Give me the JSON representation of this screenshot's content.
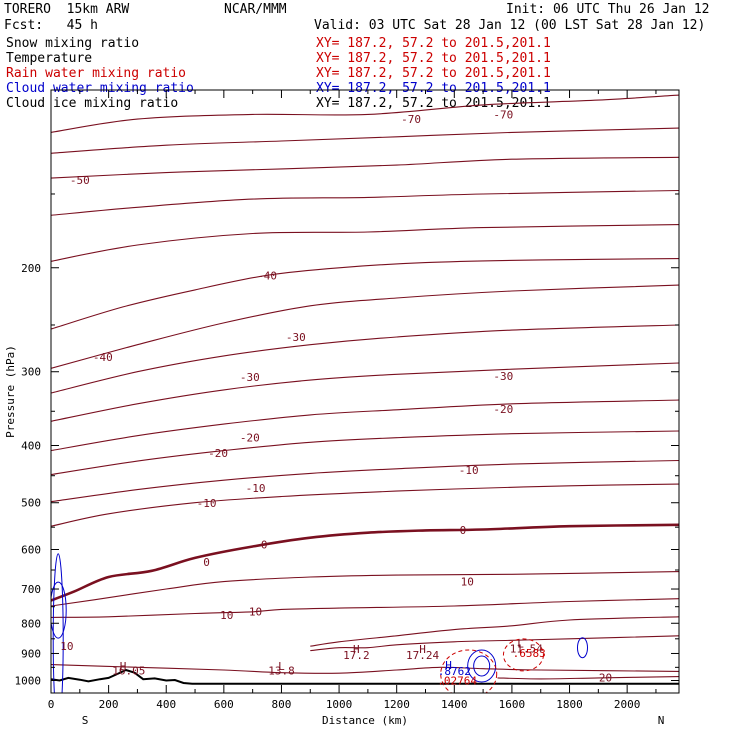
{
  "header": {
    "model": "TORERO  15km ARW",
    "org": "NCAR/MMM",
    "init": "Init: 06 UTC Thu 26 Jan 12",
    "fcst": "Fcst:   45 h",
    "valid": "Valid: 03 UTC Sat 28 Jan 12 (00 LST Sat 28 Jan 12)"
  },
  "fields": [
    {
      "name": "Snow mixing ratio",
      "xy": "XY= 187.2, 57.2 to 201.5,201.1",
      "color": "#000000"
    },
    {
      "name": "Temperature",
      "xy": "XY= 187.2, 57.2 to 201.5,201.1",
      "color": "#cc0000"
    },
    {
      "name": "Rain water mixing ratio",
      "xy": "XY= 187.2, 57.2 to 201.5,201.1",
      "color": "#cc0000"
    },
    {
      "name": "Cloud water mixing ratio",
      "xy": "XY= 187.2, 57.2 to 201.5,201.1",
      "color": "#0000cc"
    },
    {
      "name": "Cloud ice mixing ratio",
      "xy": "XY= 187.2, 57.2 to 201.5,201.1",
      "color": "#000000"
    }
  ],
  "chart_data": {
    "type": "contour",
    "xlabel": "Distance (km)",
    "ylabel": "Pressure (hPa)",
    "xlim": [
      0,
      2180
    ],
    "ylim": [
      1050,
      100
    ],
    "x_ticks": [
      0,
      200,
      400,
      600,
      800,
      1000,
      1200,
      1400,
      1600,
      1800,
      2000
    ],
    "y_ticks": [
      200,
      300,
      400,
      500,
      600,
      700,
      800,
      900,
      1000
    ],
    "x_end_labels": [
      "S",
      "N"
    ],
    "temperature_isotherms": [
      {
        "label": "-70",
        "points": [
          [
            0,
            118
          ],
          [
            300,
            112
          ],
          [
            700,
            110
          ],
          [
            1100,
            110
          ],
          [
            1500,
            106
          ],
          [
            1900,
            104
          ],
          [
            2180,
            102
          ]
        ]
      },
      {
        "label": "",
        "points": [
          [
            0,
            128
          ],
          [
            400,
            124
          ],
          [
            800,
            122
          ],
          [
            1200,
            120
          ],
          [
            1600,
            118
          ],
          [
            2180,
            116
          ]
        ]
      },
      {
        "label": "-50",
        "points": [
          [
            0,
            141
          ],
          [
            400,
            138
          ],
          [
            800,
            136
          ],
          [
            1200,
            134
          ],
          [
            1600,
            131
          ],
          [
            2180,
            130
          ]
        ]
      },
      {
        "label": "",
        "points": [
          [
            0,
            163
          ],
          [
            300,
            158
          ],
          [
            700,
            153
          ],
          [
            1100,
            152
          ],
          [
            1500,
            150
          ],
          [
            2180,
            148
          ]
        ]
      },
      {
        "label": "",
        "points": [
          [
            0,
            195
          ],
          [
            300,
            183
          ],
          [
            700,
            175
          ],
          [
            1100,
            174
          ],
          [
            1500,
            171
          ],
          [
            2180,
            169
          ]
        ]
      },
      {
        "label": "-40",
        "points": [
          [
            0,
            254
          ],
          [
            250,
            233
          ],
          [
            500,
            218
          ],
          [
            750,
            206
          ],
          [
            1000,
            200
          ],
          [
            1300,
            196
          ],
          [
            1700,
            194
          ],
          [
            2180,
            193
          ]
        ]
      },
      {
        "label": "-40",
        "points": [
          [
            0,
            296
          ],
          [
            300,
            270
          ],
          [
            600,
            248
          ],
          [
            900,
            232
          ],
          [
            1200,
            225
          ],
          [
            1600,
            219
          ],
          [
            2180,
            214
          ]
        ]
      },
      {
        "label": "-30",
        "points": [
          [
            0,
            326
          ],
          [
            300,
            300
          ],
          [
            600,
            282
          ],
          [
            900,
            270
          ],
          [
            1200,
            262
          ],
          [
            1600,
            255
          ],
          [
            2180,
            250
          ]
        ]
      },
      {
        "label": "-30",
        "points": [
          [
            0,
            364
          ],
          [
            300,
            340
          ],
          [
            600,
            322
          ],
          [
            900,
            310
          ],
          [
            1200,
            303
          ],
          [
            1600,
            297
          ],
          [
            2180,
            290
          ]
        ]
      },
      {
        "label": "-20",
        "points": [
          [
            0,
            408
          ],
          [
            300,
            385
          ],
          [
            600,
            368
          ],
          [
            900,
            355
          ],
          [
            1200,
            348
          ],
          [
            1600,
            340
          ],
          [
            2180,
            335
          ]
        ]
      },
      {
        "label": "-20",
        "points": [
          [
            0,
            448
          ],
          [
            300,
            425
          ],
          [
            600,
            408
          ],
          [
            900,
            395
          ],
          [
            1200,
            388
          ],
          [
            1600,
            382
          ],
          [
            2180,
            378
          ]
        ]
      },
      {
        "label": "-10",
        "points": [
          [
            0,
            498
          ],
          [
            300,
            475
          ],
          [
            600,
            458
          ],
          [
            900,
            446
          ],
          [
            1200,
            438
          ],
          [
            1600,
            430
          ],
          [
            2180,
            424
          ]
        ]
      },
      {
        "label": "-10",
        "points": [
          [
            0,
            548
          ],
          [
            200,
            522
          ],
          [
            500,
            500
          ],
          [
            800,
            488
          ],
          [
            1100,
            480
          ],
          [
            1400,
            474
          ],
          [
            1800,
            468
          ],
          [
            2180,
            465
          ]
        ]
      },
      {
        "label": "0",
        "bold": true,
        "points": [
          [
            0,
            732
          ],
          [
            80,
            707
          ],
          [
            200,
            668
          ],
          [
            350,
            652
          ],
          [
            500,
            620
          ],
          [
            700,
            593
          ],
          [
            900,
            573
          ],
          [
            1100,
            562
          ],
          [
            1300,
            557
          ],
          [
            1500,
            555
          ],
          [
            1800,
            548
          ],
          [
            2180,
            545
          ]
        ]
      },
      {
        "label": "10",
        "points": [
          [
            0,
            748
          ],
          [
            150,
            730
          ],
          [
            400,
            700
          ],
          [
            600,
            680
          ],
          [
            900,
            668
          ],
          [
            1200,
            663
          ],
          [
            1600,
            661
          ],
          [
            2180,
            654
          ]
        ]
      },
      {
        "label": "10",
        "points": [
          [
            0,
            782
          ],
          [
            200,
            780
          ],
          [
            500,
            770
          ],
          [
            700,
            765
          ],
          [
            800,
            758
          ],
          [
            1000,
            754
          ],
          [
            1400,
            748
          ],
          [
            1800,
            735
          ],
          [
            2180,
            727
          ]
        ]
      },
      {
        "label": "",
        "points": [
          [
            900,
            875
          ],
          [
            1000,
            860
          ],
          [
            1200,
            840
          ],
          [
            1400,
            820
          ],
          [
            1600,
            808
          ],
          [
            1800,
            790
          ],
          [
            2180,
            780
          ]
        ]
      },
      {
        "label": "",
        "points": [
          [
            900,
            890
          ],
          [
            1000,
            880
          ],
          [
            1100,
            880
          ],
          [
            1200,
            870
          ],
          [
            1400,
            860
          ],
          [
            1600,
            855
          ],
          [
            1800,
            850
          ],
          [
            2180,
            840
          ]
        ]
      },
      {
        "label": "",
        "points": [
          [
            0,
            940
          ],
          [
            300,
            950
          ],
          [
            600,
            960
          ],
          [
            800,
            970
          ],
          [
            1000,
            972
          ],
          [
            1200,
            960
          ],
          [
            1350,
            950
          ],
          [
            1500,
            955
          ],
          [
            1700,
            960
          ],
          [
            2180,
            965
          ]
        ]
      },
      {
        "label": "20",
        "points": [
          [
            1550,
            990
          ],
          [
            1700,
            994
          ],
          [
            1900,
            990
          ],
          [
            2180,
            985
          ]
        ]
      }
    ],
    "labels": [
      {
        "text": "-70",
        "x": 1250,
        "y": 112
      },
      {
        "text": "-70",
        "x": 1570,
        "y": 110
      },
      {
        "text": "-50",
        "x": 100,
        "y": 142
      },
      {
        "text": "-40",
        "x": 750,
        "y": 206
      },
      {
        "text": "-40",
        "x": 180,
        "y": 283
      },
      {
        "text": "-30",
        "x": 850,
        "y": 262
      },
      {
        "text": "-30",
        "x": 690,
        "y": 306
      },
      {
        "text": "-30",
        "x": 1570,
        "y": 305
      },
      {
        "text": "-20",
        "x": 1570,
        "y": 347
      },
      {
        "text": "-20",
        "x": 690,
        "y": 388
      },
      {
        "text": "-20",
        "x": 580,
        "y": 412
      },
      {
        "text": "-10",
        "x": 1450,
        "y": 440
      },
      {
        "text": "-10",
        "x": 710,
        "y": 472
      },
      {
        "text": "-10",
        "x": 540,
        "y": 501
      },
      {
        "text": "0",
        "x": 1430,
        "y": 556
      },
      {
        "text": "0",
        "x": 740,
        "y": 589
      },
      {
        "text": "0",
        "x": 540,
        "y": 630
      },
      {
        "text": "10",
        "x": 1445,
        "y": 680
      },
      {
        "text": "10",
        "x": 710,
        "y": 764
      },
      {
        "text": "10",
        "x": 610,
        "y": 775
      },
      {
        "text": "10",
        "x": 55,
        "y": 875
      },
      {
        "text": "20",
        "x": 1925,
        "y": 988
      },
      {
        "text": "H",
        "x": 1060,
        "y": 885
      },
      {
        "text": "17.2",
        "x": 1060,
        "y": 905
      },
      {
        "text": "H",
        "x": 1290,
        "y": 885
      },
      {
        "text": "17.24",
        "x": 1290,
        "y": 905
      },
      {
        "text": "L",
        "x": 800,
        "y": 945
      },
      {
        "text": "13.8",
        "x": 800,
        "y": 962
      },
      {
        "text": "H",
        "x": 250,
        "y": 945
      },
      {
        "text": "16.05",
        "x": 270,
        "y": 962
      },
      {
        "text": "L",
        "x": 1630,
        "y": 866
      },
      {
        "text": "11.54",
        "x": 1650,
        "y": 882
      },
      {
        "text": ".6583",
        "x": 1660,
        "y": 898
      },
      {
        "text": "H",
        "x": 1380,
        "y": 942
      },
      {
        "text": ".8762",
        "x": 1400,
        "y": 963
      },
      {
        "text": ".02764",
        "x": 1410,
        "y": 1001
      }
    ],
    "terrain_hpa": [
      [
        0,
        995
      ],
      [
        30,
        1000
      ],
      [
        60,
        990
      ],
      [
        100,
        997
      ],
      [
        130,
        1003
      ],
      [
        170,
        995
      ],
      [
        200,
        990
      ],
      [
        230,
        975
      ],
      [
        260,
        960
      ],
      [
        290,
        970
      ],
      [
        320,
        995
      ],
      [
        360,
        992
      ],
      [
        400,
        1000
      ],
      [
        430,
        998
      ],
      [
        460,
        1010
      ],
      [
        490,
        1013
      ],
      [
        2180,
        1013
      ]
    ]
  }
}
